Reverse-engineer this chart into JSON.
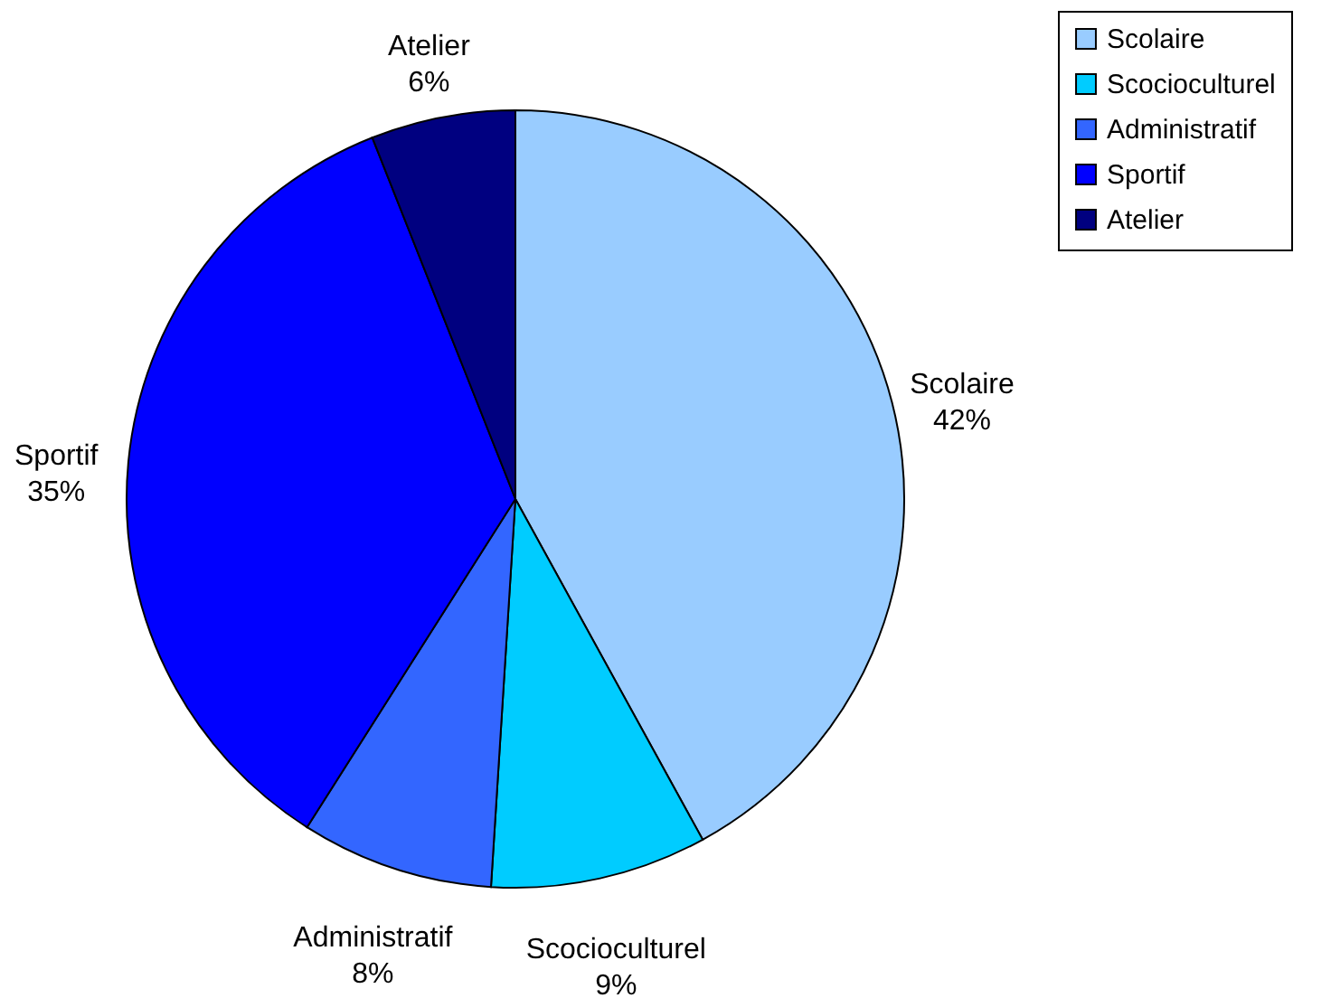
{
  "chart_data": {
    "type": "pie",
    "categories": [
      "Scolaire",
      "Scocioculturel",
      "Administratif",
      "Sportif",
      "Atelier"
    ],
    "values": [
      42,
      9,
      8,
      35,
      6
    ],
    "colors": [
      "#99ccff",
      "#00ccff",
      "#3366ff",
      "#0000ff",
      "#000080"
    ],
    "value_labels": [
      "42%",
      "9%",
      "8%",
      "35%",
      "6%"
    ],
    "legend": "top right"
  }
}
